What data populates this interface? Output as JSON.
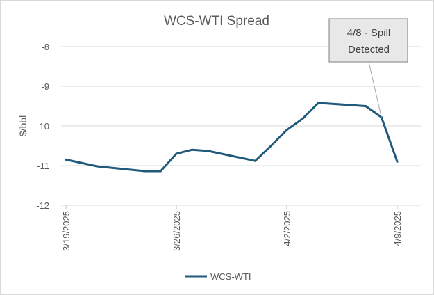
{
  "chart_data": {
    "type": "line",
    "title": "WCS-WTI Spread",
    "xlabel": "",
    "ylabel": "$/bbl",
    "ylim": [
      -12,
      -8
    ],
    "yticks": [
      -8,
      -9,
      -10,
      -11,
      -12
    ],
    "xlim": [
      "2025-03-19",
      "2025-04-09"
    ],
    "xtick_labels": [
      "3/19/2025",
      "3/26/2025",
      "4/2/2025",
      "4/9/2025"
    ],
    "xtick_dates": [
      "2025-03-19",
      "2025-03-26",
      "2025-04-02",
      "2025-04-09"
    ],
    "grid": "horizontal",
    "legend": "bottom",
    "series": [
      {
        "name": "WCS-WTI",
        "color": "#1f5a7a",
        "x": [
          "2025-03-19",
          "2025-03-21",
          "2025-03-24",
          "2025-03-25",
          "2025-03-26",
          "2025-03-27",
          "2025-03-28",
          "2025-03-31",
          "2025-04-01",
          "2025-04-02",
          "2025-04-03",
          "2025-04-04",
          "2025-04-07",
          "2025-04-08",
          "2025-04-09"
        ],
        "values": [
          -10.85,
          -11.02,
          -11.14,
          -11.14,
          -10.7,
          -10.6,
          -10.63,
          -10.88,
          -10.5,
          -10.1,
          -9.82,
          -9.42,
          -9.5,
          -9.78,
          -10.9
        ]
      }
    ],
    "annotations": [
      {
        "text_line1": "4/8 - Spill",
        "text_line2": "Detected",
        "points_to": "2025-04-08"
      }
    ]
  }
}
